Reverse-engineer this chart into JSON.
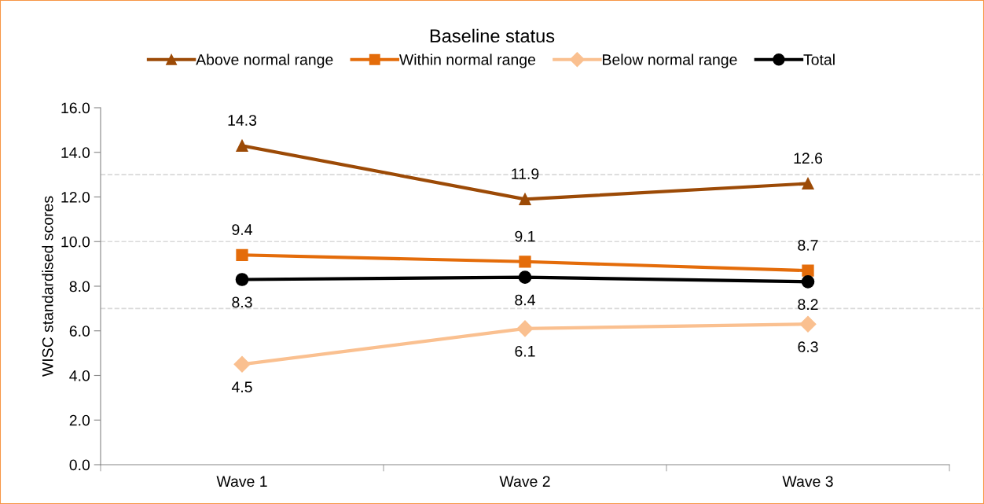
{
  "chart_data": {
    "type": "line",
    "legend_title": "Baseline status",
    "ylabel": "WISC standardised scores",
    "categories": [
      "Wave 1",
      "Wave 2",
      "Wave 3"
    ],
    "series": [
      {
        "name": "Above normal range",
        "color": "#9c4a06",
        "marker": "triangle",
        "values": [
          14.3,
          11.9,
          12.6
        ]
      },
      {
        "name": "Within normal range",
        "color": "#e46c0a",
        "marker": "square",
        "values": [
          9.4,
          9.1,
          8.7
        ]
      },
      {
        "name": "Below normal range",
        "color": "#fac090",
        "marker": "diamond",
        "values": [
          4.5,
          6.1,
          6.3
        ]
      },
      {
        "name": "Total",
        "color": "#000000",
        "marker": "circle",
        "values": [
          8.3,
          8.4,
          8.2
        ]
      }
    ],
    "ylim": [
      0,
      16
    ],
    "yticks": [
      {
        "value": 0,
        "label": "0.0"
      },
      {
        "value": 2,
        "label": "2.0"
      },
      {
        "value": 4,
        "label": "4.0"
      },
      {
        "value": 6,
        "label": "6.0"
      },
      {
        "value": 8,
        "label": "8.0"
      },
      {
        "value": 10,
        "label": "10.0"
      },
      {
        "value": 12,
        "label": "12.0"
      },
      {
        "value": 14,
        "label": "14.0"
      },
      {
        "value": 16,
        "label": "16.0"
      }
    ],
    "ref_lines": [
      {
        "axis": "y",
        "value": 13,
        "color": "#d9d9d9",
        "line_style": "dashed"
      },
      {
        "axis": "y",
        "value": 10,
        "color": "#d9d9d9",
        "line_style": "dashed"
      },
      {
        "axis": "y",
        "value": 7,
        "color": "#d9d9d9",
        "line_style": "dashed"
      }
    ],
    "data_labels": true,
    "legend": "top",
    "grid": false,
    "line_style": "solid"
  }
}
